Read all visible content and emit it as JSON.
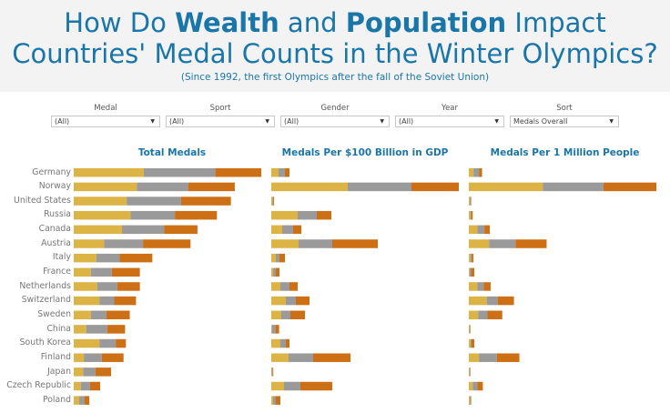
{
  "header": {
    "title_pre": "How Do ",
    "title_bold1": "Wealth",
    "title_mid": " and ",
    "title_bold2": "Population",
    "title_post": " Impact",
    "title_line2": "Countries' Medal Counts in the Winter Olympics?",
    "subtitle": "(Since 1992, the first Olympics after the fall of the Soviet Union)"
  },
  "filters": [
    {
      "label": "Medal",
      "value": "(All)"
    },
    {
      "label": "Sport",
      "value": "(All)"
    },
    {
      "label": "Gender",
      "value": "(All)"
    },
    {
      "label": "Year",
      "value": "(All)"
    },
    {
      "label": "Sort",
      "value": "Medals Overall"
    }
  ],
  "colors": {
    "gold": "#dcb446",
    "silver": "#9a9a9a",
    "bronze": "#cd6f15",
    "title": "#1a76a8"
  },
  "chart_data": [
    {
      "type": "bar",
      "stacked": true,
      "orientation": "horizontal",
      "title": "Total Medals",
      "categories": [
        "Germany",
        "Norway",
        "United States",
        "Russia",
        "Canada",
        "Austria",
        "Italy",
        "France",
        "Netherlands",
        "Switzerland",
        "Sweden",
        "China",
        "South Korea",
        "Finland",
        "Japan",
        "Czech Republic",
        "Poland"
      ],
      "series": [
        {
          "name": "Gold",
          "values": [
            90,
            81,
            68,
            73,
            62,
            39,
            29,
            22,
            30,
            33,
            22,
            16,
            33,
            13,
            12,
            9,
            7
          ]
        },
        {
          "name": "Silver",
          "values": [
            92,
            66,
            70,
            57,
            54,
            50,
            30,
            27,
            26,
            19,
            20,
            27,
            21,
            23,
            16,
            12,
            7
          ]
        },
        {
          "name": "Bronze",
          "values": [
            59,
            60,
            64,
            54,
            43,
            61,
            42,
            36,
            29,
            28,
            30,
            23,
            13,
            28,
            20,
            13,
            6
          ]
        }
      ]
    },
    {
      "type": "bar",
      "stacked": true,
      "orientation": "horizontal",
      "title": "Medals Per $100 Billion in GDP",
      "categories": [
        "Germany",
        "Norway",
        "United States",
        "Russia",
        "Canada",
        "Austria",
        "Italy",
        "France",
        "Netherlands",
        "Switzerland",
        "Sweden",
        "China",
        "South Korea",
        "Finland",
        "Japan",
        "Czech Republic",
        "Poland"
      ],
      "series": [
        {
          "name": "Gold",
          "values": [
            1.6,
            16.8,
            0.3,
            5.8,
            2.4,
            6.0,
            1.0,
            0.4,
            2.0,
            3.2,
            2.2,
            0.1,
            2.0,
            3.8,
            0.1,
            2.8,
            0.4
          ]
        },
        {
          "name": "Silver",
          "values": [
            1.4,
            14.0,
            0.2,
            4.2,
            2.4,
            7.4,
            0.8,
            0.6,
            2.0,
            2.2,
            2.0,
            0.8,
            1.2,
            5.4,
            0.2,
            3.6,
            0.6
          ]
        },
        {
          "name": "Bronze",
          "values": [
            1.0,
            10.4,
            0.1,
            3.2,
            1.8,
            10.0,
            1.2,
            0.8,
            1.8,
            3.0,
            3.2,
            0.8,
            0.8,
            8.2,
            0.1,
            7.0,
            1.0
          ]
        }
      ]
    },
    {
      "type": "bar",
      "stacked": true,
      "orientation": "horizontal",
      "title": "Medals Per 1 Million People",
      "categories": [
        "Germany",
        "Norway",
        "United States",
        "Russia",
        "Canada",
        "Austria",
        "Italy",
        "France",
        "Netherlands",
        "Switzerland",
        "Sweden",
        "China",
        "South Korea",
        "Finland",
        "Japan",
        "Czech Republic",
        "Poland"
      ],
      "series": [
        {
          "name": "Gold",
          "values": [
            0.6,
            9.5,
            0.1,
            0.2,
            1.1,
            2.6,
            0.2,
            0.1,
            1.1,
            2.3,
            1.2,
            0.02,
            0.2,
            1.3,
            0.05,
            0.5,
            0.1
          ]
        },
        {
          "name": "Silver",
          "values": [
            0.7,
            7.8,
            0.1,
            0.1,
            0.9,
            3.4,
            0.2,
            0.2,
            0.8,
            1.4,
            1.2,
            0.02,
            0.1,
            2.3,
            0.05,
            0.6,
            0.1
          ]
        },
        {
          "name": "Bronze",
          "values": [
            0.4,
            6.8,
            0.1,
            0.2,
            0.7,
            4.0,
            0.2,
            0.4,
            0.9,
            2.1,
            1.9,
            0.02,
            0.4,
            2.9,
            0.05,
            0.7,
            0.1
          ]
        }
      ]
    }
  ]
}
